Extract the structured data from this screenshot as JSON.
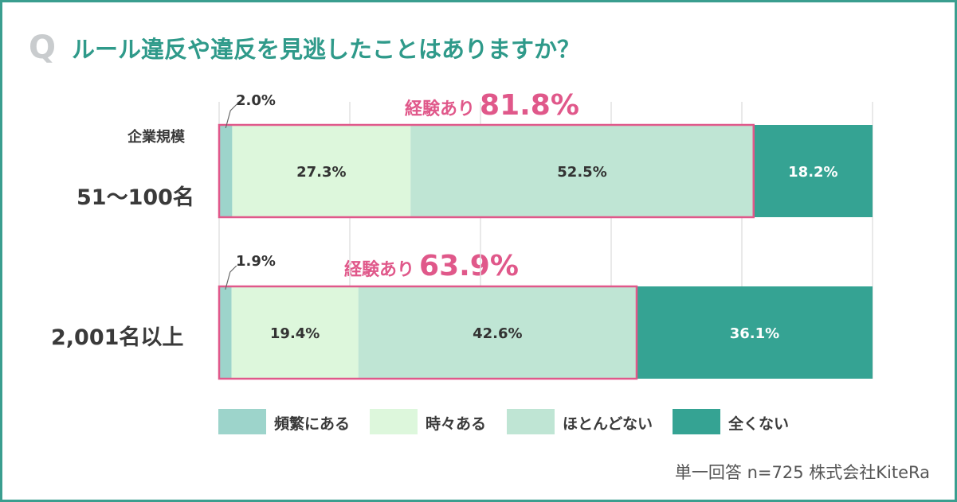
{
  "title_prefix": "Q",
  "title": "ルール違反や違反を見逃したことはありますか？",
  "footer": "単一回答 n=725  株式会社KiteRa",
  "chart_data": {
    "type": "bar",
    "orientation": "horizontal-stacked-100",
    "title": "ルール違反や違反を見逃したことはありますか？",
    "categories": [
      "51～100名",
      "2,001名以上"
    ],
    "category_header": "企業規模",
    "series": [
      {
        "name": "頻繁にある",
        "color": "#9dd4cb",
        "values": [
          2.0,
          1.9
        ],
        "labels": [
          "2.0%",
          "1.9%"
        ]
      },
      {
        "name": "時々ある",
        "color": "#ddf7dc",
        "values": [
          27.3,
          19.4
        ],
        "labels": [
          "27.3%",
          "19.4%"
        ]
      },
      {
        "name": "ほとんどない",
        "color": "#bfe5d4",
        "values": [
          52.5,
          42.6
        ],
        "labels": [
          "52.5%",
          "42.6%"
        ]
      },
      {
        "name": "全くない",
        "color": "#35a393",
        "values": [
          18.2,
          36.1
        ],
        "labels": [
          "18.2%",
          "36.1%"
        ]
      }
    ],
    "highlights": [
      {
        "label": "経験あり",
        "value": "81.8%"
      },
      {
        "label": "経験あり",
        "value": "63.9%"
      }
    ],
    "xlim": [
      0,
      100
    ],
    "grid": true
  },
  "colors": {
    "frame": "#3a9e8f",
    "title": "#2f9a8a",
    "highlight": "#e0588a",
    "grid": "#e2e2e2"
  }
}
